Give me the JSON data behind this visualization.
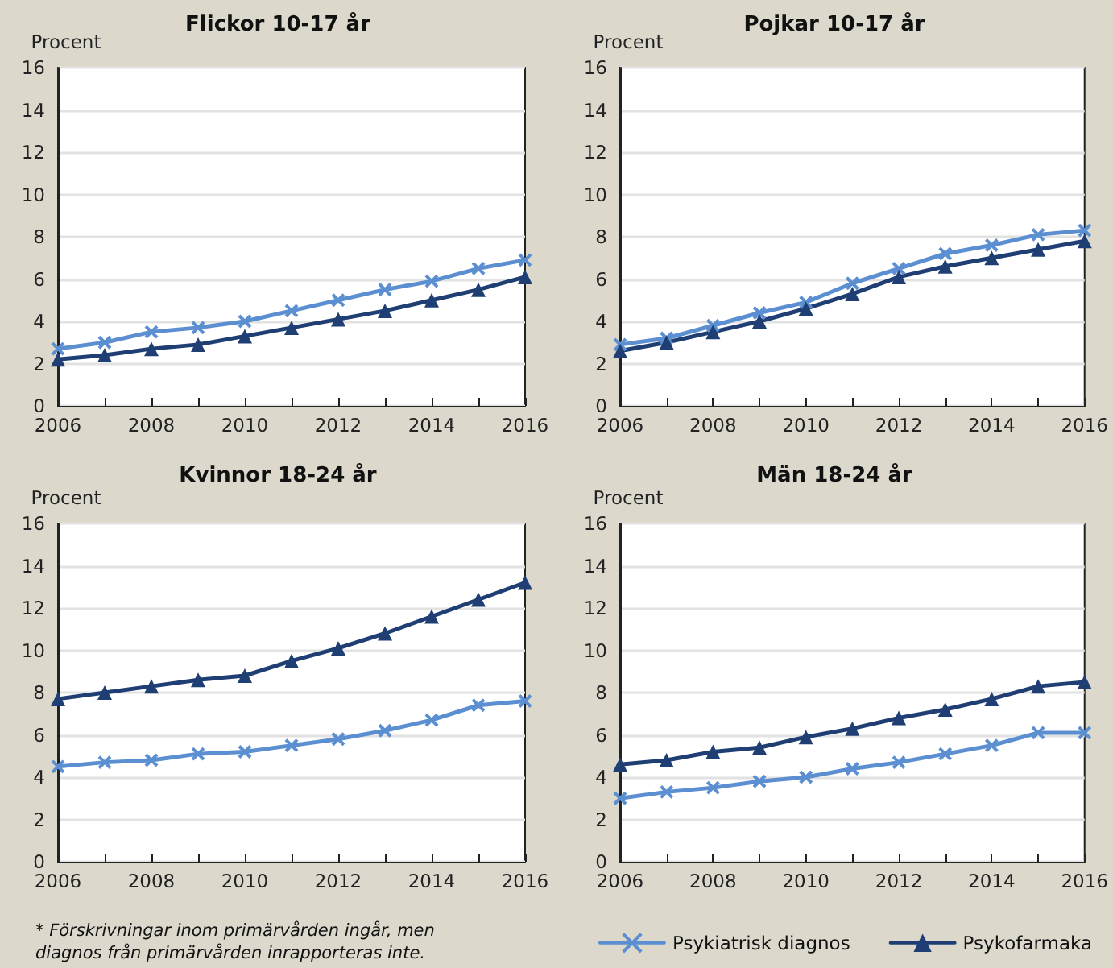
{
  "chart_data": [
    {
      "type": "line",
      "title": "Flickor 10-17 år",
      "ylabel": "Procent",
      "x": [
        2006,
        2007,
        2008,
        2009,
        2010,
        2011,
        2012,
        2013,
        2014,
        2015,
        2016
      ],
      "xlim": [
        2006,
        2016
      ],
      "xticks": [
        2006,
        2008,
        2010,
        2012,
        2014,
        2016
      ],
      "ylim": [
        0,
        16
      ],
      "yticks": [
        0,
        2,
        4,
        6,
        8,
        10,
        12,
        14,
        16
      ],
      "grid": "y",
      "legend": false,
      "line_style": "solid",
      "series": [
        {
          "color": "#5b8fd1",
          "marker": "cross",
          "values": [
            2.7,
            3.0,
            3.5,
            3.7,
            4.0,
            4.5,
            5.0,
            5.5,
            5.9,
            6.5,
            6.9
          ]
        },
        {
          "color": "#1f3f74",
          "marker": "triangle",
          "values": [
            2.2,
            2.4,
            2.7,
            2.9,
            3.3,
            3.7,
            4.1,
            4.5,
            5.0,
            5.5,
            6.1
          ]
        }
      ]
    },
    {
      "type": "line",
      "title": "Pojkar 10-17 år",
      "ylabel": "Procent",
      "x": [
        2006,
        2007,
        2008,
        2009,
        2010,
        2011,
        2012,
        2013,
        2014,
        2015,
        2016
      ],
      "xlim": [
        2006,
        2016
      ],
      "xticks": [
        2006,
        2008,
        2010,
        2012,
        2014,
        2016
      ],
      "ylim": [
        0,
        16
      ],
      "yticks": [
        0,
        2,
        4,
        6,
        8,
        10,
        12,
        14,
        16
      ],
      "grid": "y",
      "legend": false,
      "line_style": "solid",
      "series": [
        {
          "color": "#5b8fd1",
          "marker": "cross",
          "values": [
            2.9,
            3.2,
            3.8,
            4.4,
            4.9,
            5.8,
            6.5,
            7.2,
            7.6,
            8.1,
            8.3
          ]
        },
        {
          "color": "#1f3f74",
          "marker": "triangle",
          "values": [
            2.6,
            3.0,
            3.5,
            4.0,
            4.6,
            5.3,
            6.1,
            6.6,
            7.0,
            7.4,
            7.8
          ]
        }
      ]
    },
    {
      "type": "line",
      "title": "Kvinnor 18-24 år",
      "ylabel": "Procent",
      "x": [
        2006,
        2007,
        2008,
        2009,
        2010,
        2011,
        2012,
        2013,
        2014,
        2015,
        2016
      ],
      "xlim": [
        2006,
        2016
      ],
      "xticks": [
        2006,
        2008,
        2010,
        2012,
        2014,
        2016
      ],
      "ylim": [
        0,
        16
      ],
      "yticks": [
        0,
        2,
        4,
        6,
        8,
        10,
        12,
        14,
        16
      ],
      "grid": "y",
      "legend": false,
      "line_style": "solid",
      "annotations": [
        "* Förskrivningar inom primärvården ingår, men diagnos från primärvården inrapporteras inte."
      ],
      "series": [
        {
          "color": "#5b8fd1",
          "marker": "cross",
          "values": [
            4.5,
            4.7,
            4.8,
            5.1,
            5.2,
            5.5,
            5.8,
            6.2,
            6.7,
            7.4,
            7.6
          ]
        },
        {
          "color": "#1f3f74",
          "marker": "triangle",
          "values": [
            7.7,
            8.0,
            8.3,
            8.6,
            8.8,
            9.5,
            10.1,
            10.8,
            11.6,
            12.4,
            13.2
          ]
        }
      ]
    },
    {
      "type": "line",
      "title": "Män 18-24 år",
      "ylabel": "Procent",
      "x": [
        2006,
        2007,
        2008,
        2009,
        2010,
        2011,
        2012,
        2013,
        2014,
        2015,
        2016
      ],
      "xlim": [
        2006,
        2016
      ],
      "xticks": [
        2006,
        2008,
        2010,
        2012,
        2014,
        2016
      ],
      "ylim": [
        0,
        16
      ],
      "yticks": [
        0,
        2,
        4,
        6,
        8,
        10,
        12,
        14,
        16
      ],
      "grid": "y",
      "legend": "bottom",
      "line_style": "solid",
      "series": [
        {
          "name": "Psykiatrisk diagnos",
          "color": "#5b8fd1",
          "marker": "cross",
          "values": [
            3.0,
            3.3,
            3.5,
            3.8,
            4.0,
            4.4,
            4.7,
            5.1,
            5.5,
            6.1,
            6.1
          ]
        },
        {
          "name": "Psykofarmaka",
          "color": "#1f3f74",
          "marker": "triangle",
          "values": [
            4.6,
            4.8,
            5.2,
            5.4,
            5.9,
            6.3,
            6.8,
            7.2,
            7.7,
            8.3,
            8.5
          ]
        }
      ]
    }
  ]
}
